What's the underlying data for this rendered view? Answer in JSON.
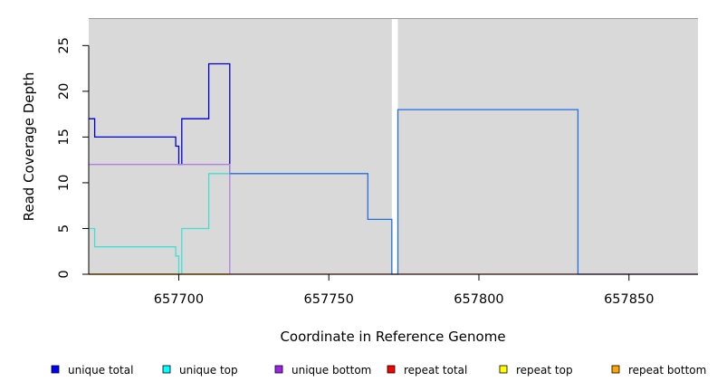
{
  "chart_data": {
    "type": "line",
    "title": "",
    "xlabel": "Coordinate in Reference Genome",
    "ylabel": "Read Coverage Depth",
    "xlim": [
      657670,
      657873
    ],
    "ylim": [
      0,
      28
    ],
    "x_ticks": [
      657700,
      657750,
      657800,
      657850
    ],
    "y_ticks": [
      0,
      5,
      10,
      15,
      20,
      25
    ],
    "grid": false,
    "background_color": "#d9d9d9",
    "legend_position": "bottom",
    "gap_region": [
      657771,
      657773
    ],
    "series": [
      {
        "name": "unique total",
        "color": "#0000cd",
        "legend_color": "#0000ff",
        "points": [
          [
            657670,
            17
          ],
          [
            657672,
            17
          ],
          [
            657672,
            15
          ],
          [
            657699,
            15
          ],
          [
            657699,
            14
          ],
          [
            657700,
            14
          ],
          [
            657700,
            12
          ],
          [
            657701,
            12
          ],
          [
            657701,
            17
          ],
          [
            657710,
            17
          ],
          [
            657710,
            23
          ],
          [
            657717,
            23
          ],
          [
            657717,
            11
          ]
        ]
      },
      {
        "name": "unique top",
        "color": "#40e0d0",
        "legend_color": "#00ffff",
        "points": [
          [
            657670,
            5
          ],
          [
            657672,
            5
          ],
          [
            657672,
            3
          ],
          [
            657699,
            3
          ],
          [
            657699,
            2
          ],
          [
            657700,
            2
          ],
          [
            657700,
            0
          ],
          [
            657701,
            0
          ],
          [
            657701,
            5
          ],
          [
            657710,
            5
          ],
          [
            657710,
            11
          ],
          [
            657717,
            11
          ]
        ]
      },
      {
        "name": "unique bottom",
        "color": "#b080e0",
        "legend_color": "#a020f0",
        "points": [
          [
            657670,
            12
          ],
          [
            657717,
            12
          ],
          [
            657717,
            0
          ]
        ]
      },
      {
        "name": "repeat total",
        "color": "#e03030",
        "legend_color": "#ff0000",
        "points": [
          [
            657670,
            0
          ],
          [
            657873,
            0
          ]
        ]
      },
      {
        "name": "repeat top",
        "color": "#e0e000",
        "legend_color": "#ffff00",
        "points": [
          [
            657670,
            0
          ],
          [
            657717,
            0
          ]
        ]
      },
      {
        "name": "repeat bottom",
        "color": "#ffa500",
        "legend_color": "#ffa500",
        "points": [
          [
            657670,
            0
          ],
          [
            657717,
            0
          ]
        ]
      },
      {
        "name": "",
        "color": "#1e6ee8",
        "points": [
          [
            657717,
            11
          ],
          [
            657763,
            11
          ],
          [
            657763,
            6
          ],
          [
            657771,
            6
          ],
          [
            657771,
            0
          ],
          [
            657773,
            0
          ],
          [
            657773,
            18
          ],
          [
            657833,
            18
          ],
          [
            657833,
            0
          ],
          [
            657873,
            0
          ]
        ]
      }
    ]
  }
}
